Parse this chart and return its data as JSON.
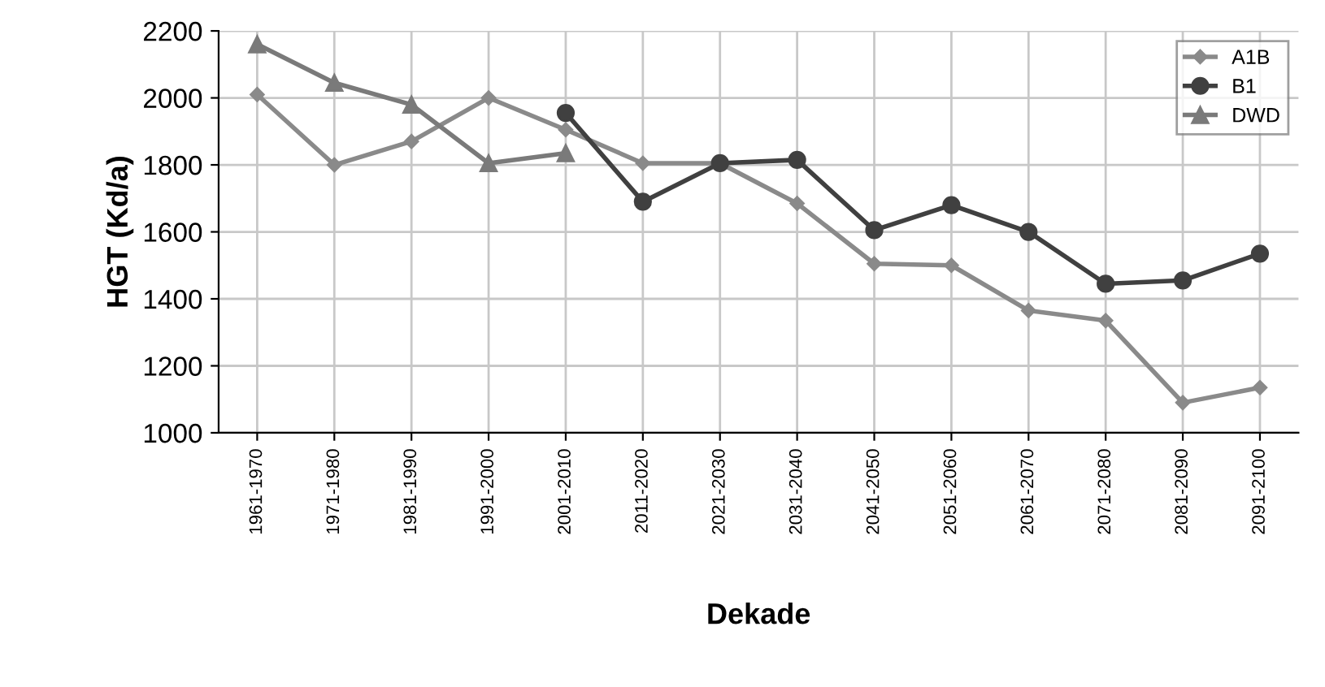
{
  "chart_data": {
    "type": "line",
    "xlabel": "Dekade",
    "ylabel": "HGT (Kd/a)",
    "categories": [
      "1961-1970",
      "1971-1980",
      "1981-1990",
      "1991-2000",
      "2001-2010",
      "2011-2020",
      "2021-2030",
      "2031-2040",
      "2041-2050",
      "2051-2060",
      "2061-2070",
      "2071-2080",
      "2081-2090",
      "2091-2100"
    ],
    "series": [
      {
        "name": "A1B",
        "color": "#8a8a8a",
        "marker": "diamond",
        "values": [
          2010,
          1800,
          1870,
          2000,
          1905,
          1805,
          1805,
          1685,
          1505,
          1500,
          1365,
          1335,
          1090,
          1135
        ]
      },
      {
        "name": "B1",
        "color": "#404040",
        "marker": "circle",
        "values": [
          null,
          null,
          null,
          null,
          1955,
          1690,
          1805,
          1815,
          1605,
          1680,
          1600,
          1445,
          1455,
          1535
        ]
      },
      {
        "name": "DWD",
        "color": "#7a7a7a",
        "marker": "triangle",
        "values": [
          2160,
          2045,
          1980,
          1805,
          1835,
          null,
          null,
          null,
          null,
          null,
          null,
          null,
          null,
          null
        ]
      }
    ],
    "ylim": [
      1000,
      2200
    ],
    "yticks": [
      1000,
      1200,
      1400,
      1600,
      1800,
      2000,
      2200
    ],
    "grid": true,
    "legend": "top right"
  }
}
